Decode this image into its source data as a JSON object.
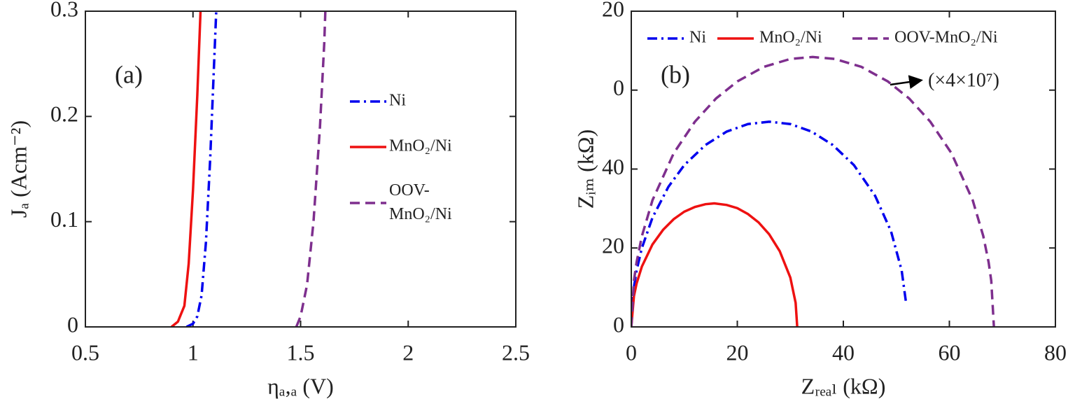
{
  "chart_data": [
    {
      "type": "line",
      "panel_label": "(a)",
      "x_label": "ηₐ,ₐ (V)",
      "y_label": "Jₐ (Acm⁻²)",
      "xlim": [
        0.5,
        2.5
      ],
      "xticks": [
        0.5,
        1,
        1.5,
        2,
        2.5
      ],
      "ylim": [
        0,
        0.3
      ],
      "yticks": [
        0,
        0.1,
        0.2,
        0.3
      ],
      "legend": "right",
      "series": [
        {
          "name": "Ni",
          "color": "#0000ee",
          "linestyle": "dashdot",
          "x": [
            0.97,
            1.0,
            1.02,
            1.04,
            1.06,
            1.08,
            1.1,
            1.108
          ],
          "values": [
            0,
            0.003,
            0.01,
            0.03,
            0.08,
            0.16,
            0.26,
            0.3
          ]
        },
        {
          "name": "MnO₂/Ni",
          "color": "#ee1111",
          "linestyle": "solid",
          "x": [
            0.9,
            0.93,
            0.96,
            0.98,
            1.0,
            1.02,
            1.035
          ],
          "values": [
            0,
            0.005,
            0.02,
            0.06,
            0.13,
            0.22,
            0.3
          ]
        },
        {
          "name": "OOV-MnO₂/Ni",
          "color": "#7e2f8e",
          "linestyle": "dashed",
          "x": [
            1.48,
            1.5,
            1.53,
            1.56,
            1.59,
            1.61,
            1.615
          ],
          "values": [
            0,
            0.01,
            0.04,
            0.1,
            0.19,
            0.27,
            0.3
          ]
        }
      ]
    },
    {
      "type": "line",
      "panel_label": "(b)",
      "x_label": "Zᵣₑₐₗ (kΩ)",
      "y_label": "Zᵢₘ (kΩ)",
      "annotation": "(×4×10⁷)",
      "xlim": [
        0,
        80
      ],
      "xticks": [
        0,
        20,
        40,
        60,
        80
      ],
      "ylim": [
        0,
        80
      ],
      "yticks": [
        0,
        20,
        40,
        {
          "value": 60,
          "label": "0"
        },
        {
          "value": 80,
          "label": "20"
        }
      ],
      "legend": "top",
      "series": [
        {
          "name": "Ni",
          "color": "#0000ee",
          "linestyle": "dashdot",
          "x": [
            0,
            0.5,
            1,
            2,
            4,
            7,
            10,
            14,
            18,
            22,
            26,
            30,
            34,
            38,
            42,
            46,
            49,
            51,
            51.8
          ],
          "values": [
            0,
            10.1,
            14.3,
            20,
            27.7,
            35.5,
            41.0,
            46.1,
            49.5,
            51.4,
            52,
            51.4,
            49.5,
            46.1,
            41.0,
            33.2,
            24.2,
            14.3,
            6.4
          ]
        },
        {
          "name": "MnO₂/Ni",
          "color": "#ee1111",
          "linestyle": "solid",
          "x": [
            0,
            0.5,
            1,
            2,
            4,
            6,
            8,
            10,
            12,
            14,
            15.65,
            18,
            20,
            22,
            24,
            26,
            28,
            30,
            31,
            31.3
          ],
          "values": [
            0,
            7.8,
            11.0,
            15.3,
            20.9,
            24.6,
            27.3,
            29.2,
            30.4,
            31.1,
            31.3,
            30.9,
            30.1,
            28.6,
            26.5,
            23.5,
            19.2,
            12.5,
            6.1,
            0
          ]
        },
        {
          "name": "OOV-MnO₂/Ni",
          "color": "#7e2f8e",
          "linestyle": "dashed",
          "x": [
            0,
            0.5,
            1,
            2,
            4,
            8,
            12,
            16,
            20,
            25,
            30,
            34.2,
            38.4,
            43.4,
            48.4,
            52.4,
            56.4,
            60.4,
            64.4,
            66.4,
            67.4,
            67.9,
            68.4
          ],
          "values": [
            0,
            11.7,
            16.4,
            23.0,
            32.1,
            44.0,
            52.0,
            57.9,
            62.2,
            65.9,
            67.9,
            68.4,
            67.9,
            65.9,
            62.2,
            57.9,
            52.0,
            44.0,
            32.1,
            23.0,
            16.4,
            11.7,
            0
          ]
        }
      ]
    }
  ]
}
